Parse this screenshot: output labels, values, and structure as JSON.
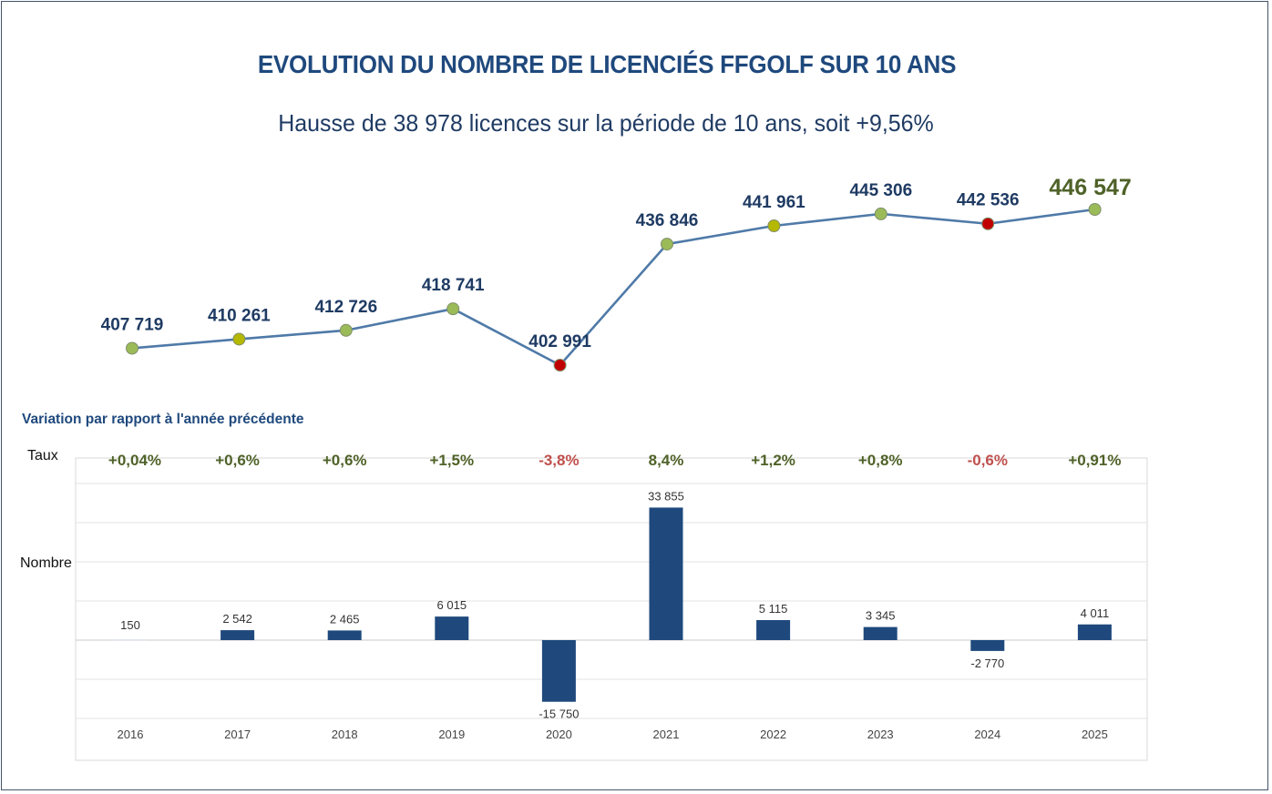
{
  "title": "EVOLUTION DU NOMBRE DE LICENCIÉS  FFGOLF SUR 10 ANS",
  "subtitle": "Hausse de 38 978 licences sur la période de 10 ans, soit +9,56%",
  "variation_title": "Variation par rapport à l'année précédente",
  "row_labels": {
    "taux": "Taux",
    "nombre": "Nombre"
  },
  "colors": {
    "title": "#1f497d",
    "line": "#4f7aa8",
    "marker_green": "#9bbb59",
    "marker_yellow": "#b5b800",
    "marker_red": "#c00000",
    "label_blue": "#1f3b63",
    "last_label": "#4f6228",
    "rate_positive": "#4f6228",
    "rate_negative": "#c0504d",
    "bar": "#1f497d",
    "grid": "#d9d9d9"
  },
  "chart_data": [
    {
      "type": "line",
      "title": "EVOLUTION DU NOMBRE DE LICENCIÉS  FFGOLF SUR 10 ANS",
      "subtitle": "Hausse de 38 978 licences sur la période de 10 ans, soit +9,56%",
      "x": [
        "2016",
        "2017",
        "2018",
        "2019",
        "2020",
        "2021",
        "2022",
        "2023",
        "2024",
        "2025"
      ],
      "values": [
        407719,
        410261,
        412726,
        418741,
        402991,
        436846,
        441961,
        445306,
        442536,
        446547
      ],
      "data_labels": [
        "407 719",
        "410 261",
        "412 726",
        "418 741",
        "402 991",
        "436 846",
        "441 961",
        "445 306",
        "442 536",
        "446 547"
      ],
      "marker_colors": [
        "green",
        "yellow",
        "green",
        "green",
        "red",
        "green",
        "yellow",
        "green",
        "red",
        "green"
      ],
      "ylim": [
        400000,
        450000
      ],
      "grid": false,
      "axes_visible": false
    },
    {
      "type": "bar",
      "title": "Variation par rapport à l'année précédente",
      "categories": [
        "2016",
        "2017",
        "2018",
        "2019",
        "2020",
        "2021",
        "2022",
        "2023",
        "2024",
        "2025"
      ],
      "values": [
        150,
        2542,
        2465,
        6015,
        -15750,
        33855,
        5115,
        3345,
        -2770,
        4011
      ],
      "data_labels": [
        "150",
        "2 542",
        "2 465",
        "6 015",
        "-15 750",
        "33 855",
        "5 115",
        "3 345",
        "-2 770",
        "4 011"
      ],
      "rates": [
        "+0,04%",
        "+0,6%",
        "+0,6%",
        "+1,5%",
        "-3,8%",
        "8,4%",
        "+1,2%",
        "+0,8%",
        "-0,6%",
        "+0,91%"
      ],
      "rate_signs": [
        "pos",
        "pos",
        "pos",
        "pos",
        "neg",
        "pos",
        "pos",
        "pos",
        "neg",
        "pos"
      ],
      "ylabel": "Nombre",
      "ylim": [
        -20000,
        40000
      ],
      "grid_step": 10000,
      "grid": true
    }
  ]
}
